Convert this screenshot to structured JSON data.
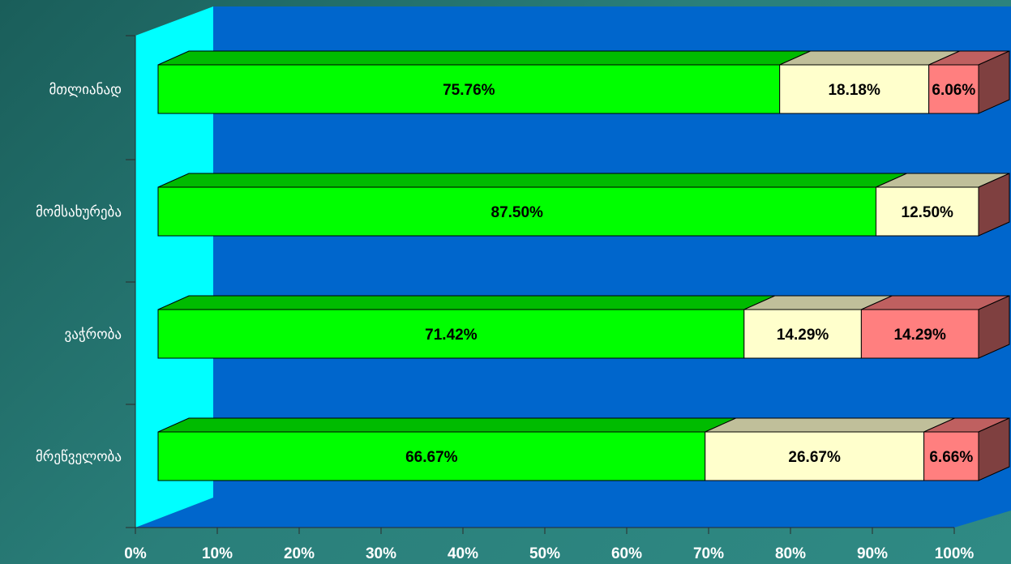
{
  "chart_data": {
    "type": "bar",
    "orientation": "horizontal",
    "stacked": "percent",
    "three_d": true,
    "categories": [
      "მთლიანად",
      "მომსახურება",
      "ვაჭრობა",
      "მრეწველობა"
    ],
    "series": [
      {
        "values": [
          75.76,
          87.5,
          71.42,
          66.67
        ],
        "labels": [
          "75.76%",
          "87.50%",
          "71.42%",
          "66.67%"
        ],
        "color": "#00ff00"
      },
      {
        "values": [
          18.18,
          12.5,
          14.29,
          26.67
        ],
        "labels": [
          "18.18%",
          "12.50%",
          "14.29%",
          "26.67%"
        ],
        "color": "#ffffcc"
      },
      {
        "values": [
          6.06,
          0,
          14.29,
          6.66
        ],
        "labels": [
          "6.06%",
          "",
          "14.29%",
          "6.66%"
        ],
        "color": "#ff7f7f"
      }
    ],
    "xlim": [
      0,
      100
    ],
    "x_ticks": [
      "0%",
      "10%",
      "20%",
      "30%",
      "40%",
      "50%",
      "60%",
      "70%",
      "80%",
      "90%",
      "100%"
    ],
    "title": "",
    "xlabel": "",
    "ylabel": "",
    "legend": "none",
    "grid": false,
    "wall_color": "#0066cc",
    "side_wall_color": "#00ffff"
  }
}
